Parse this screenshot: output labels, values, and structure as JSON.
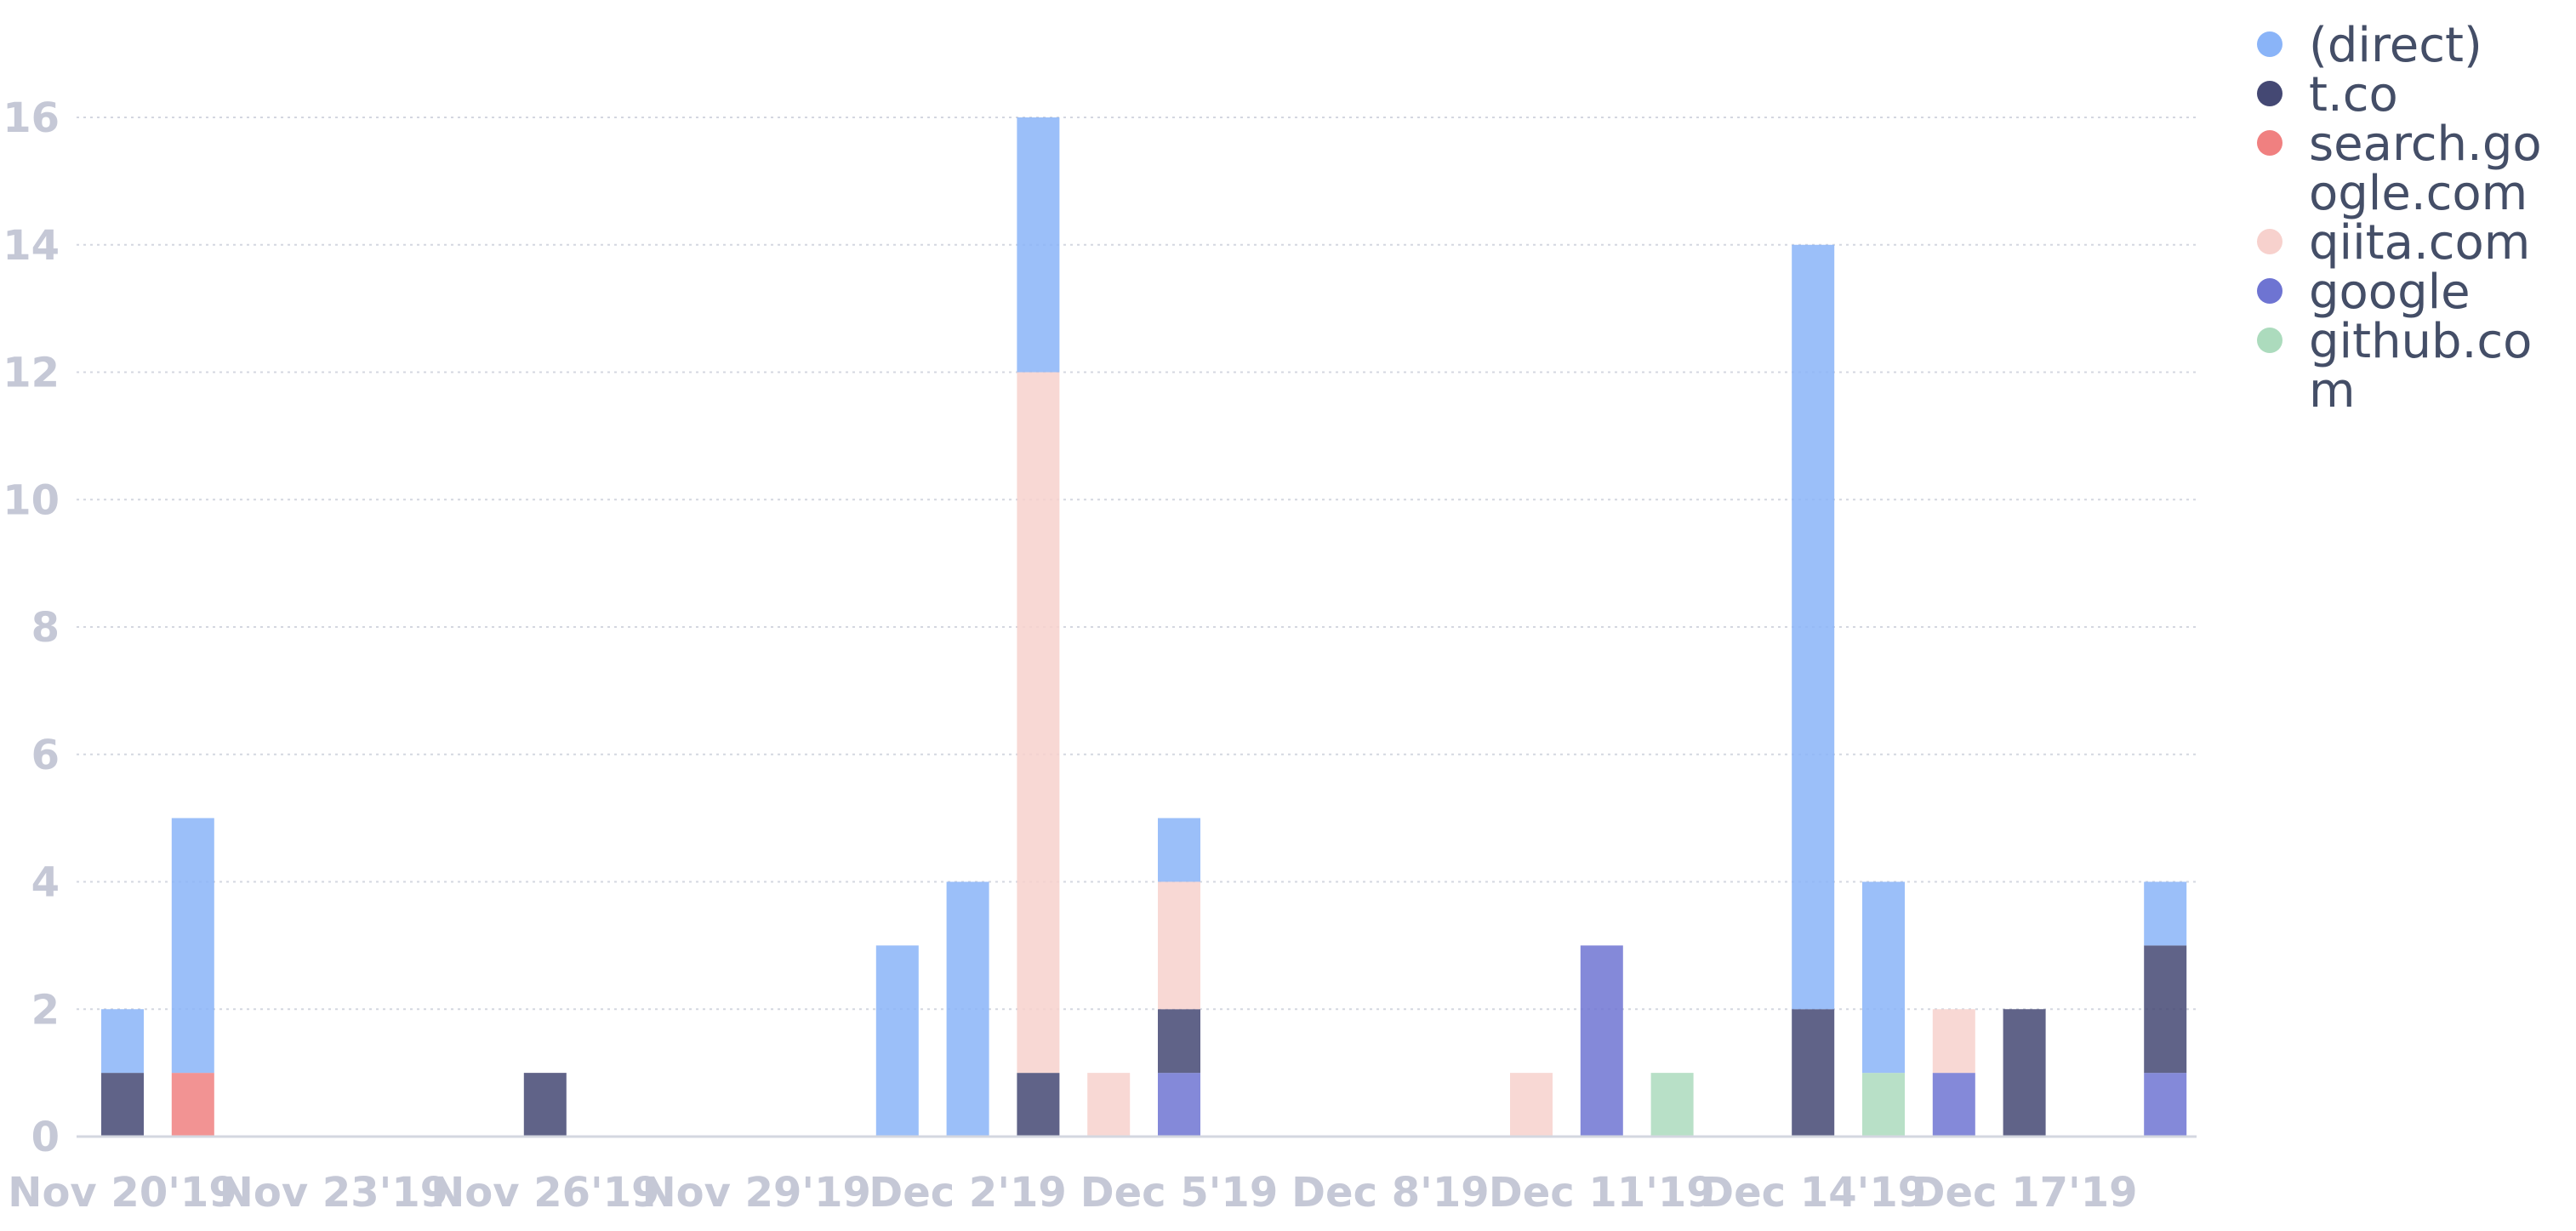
{
  "chart_data": {
    "type": "bar",
    "stacked": true,
    "title": "",
    "xlabel": "",
    "ylabel": "",
    "ylim": [
      0,
      16
    ],
    "yticks": [
      "0",
      "2",
      "4",
      "6",
      "8",
      "10",
      "12",
      "14",
      "16"
    ],
    "grid": true,
    "legend_position": "top-right",
    "categories": [
      "Nov 20'19",
      "Nov 21'19",
      "Nov 22'19",
      "Nov 23'19",
      "Nov 24'19",
      "Nov 25'19",
      "Nov 26'19",
      "Nov 27'19",
      "Nov 28'19",
      "Nov 29'19",
      "Nov 30'19",
      "Dec 1'19",
      "Dec 2'19",
      "Dec 3'19",
      "Dec 4'19",
      "Dec 5'19",
      "Dec 6'19",
      "Dec 7'19",
      "Dec 8'19",
      "Dec 9'19",
      "Dec 10'19",
      "Dec 11'19",
      "Dec 12'19",
      "Dec 13'19",
      "Dec 14'19",
      "Dec 15'19",
      "Dec 16'19",
      "Dec 17'19",
      "Dec 18'19",
      "Dec 19'19"
    ],
    "xtick_labels": [
      "Nov 20'19",
      "Nov 23'19",
      "Nov 26'19",
      "Nov 29'19",
      "Dec 2'19",
      "Dec 5'19",
      "Dec 8'19",
      "Dec 11'19",
      "Dec 14'19",
      "Dec 17'19"
    ],
    "series": [
      {
        "name": "(direct)",
        "color": "#8ab4f8",
        "values": [
          1,
          4,
          0,
          0,
          0,
          0,
          0,
          0,
          0,
          0,
          0,
          3,
          4,
          4,
          0,
          1,
          0,
          0,
          0,
          0,
          0,
          0,
          0,
          0,
          12,
          3,
          0,
          0,
          0,
          1
        ]
      },
      {
        "name": "t.co",
        "color": "#444873",
        "values": [
          1,
          0,
          0,
          0,
          0,
          0,
          1,
          0,
          0,
          0,
          0,
          0,
          0,
          1,
          0,
          1,
          0,
          0,
          0,
          0,
          0,
          0,
          0,
          0,
          2,
          0,
          0,
          2,
          0,
          2
        ]
      },
      {
        "name": "search.google.com",
        "color": "#f08080",
        "values": [
          0,
          1,
          0,
          0,
          0,
          0,
          0,
          0,
          0,
          0,
          0,
          0,
          0,
          0,
          0,
          0,
          0,
          0,
          0,
          0,
          0,
          0,
          0,
          0,
          0,
          0,
          0,
          0,
          0,
          0
        ]
      },
      {
        "name": "qiita.com",
        "color": "#f7d1cd",
        "values": [
          0,
          0,
          0,
          0,
          0,
          0,
          0,
          0,
          0,
          0,
          0,
          0,
          0,
          11,
          1,
          2,
          0,
          0,
          0,
          0,
          1,
          0,
          0,
          0,
          0,
          0,
          1,
          0,
          0,
          0
        ]
      },
      {
        "name": "google",
        "color": "#6e74d2",
        "values": [
          0,
          0,
          0,
          0,
          0,
          0,
          0,
          0,
          0,
          0,
          0,
          0,
          0,
          0,
          0,
          1,
          0,
          0,
          0,
          0,
          0,
          3,
          0,
          0,
          0,
          0,
          1,
          0,
          0,
          1
        ]
      },
      {
        "name": "github.com",
        "color": "#acdbbd",
        "values": [
          0,
          0,
          0,
          0,
          0,
          0,
          0,
          0,
          0,
          0,
          0,
          0,
          0,
          0,
          0,
          0,
          0,
          0,
          0,
          0,
          0,
          0,
          1,
          0,
          0,
          1,
          0,
          0,
          0,
          0
        ]
      }
    ],
    "legend_lines": [
      [
        "(direct)"
      ],
      [
        "t.co"
      ],
      [
        "search.go",
        "ogle.com"
      ],
      [
        "qiita.com"
      ],
      [
        "google"
      ],
      [
        "github.co",
        "m"
      ]
    ]
  }
}
